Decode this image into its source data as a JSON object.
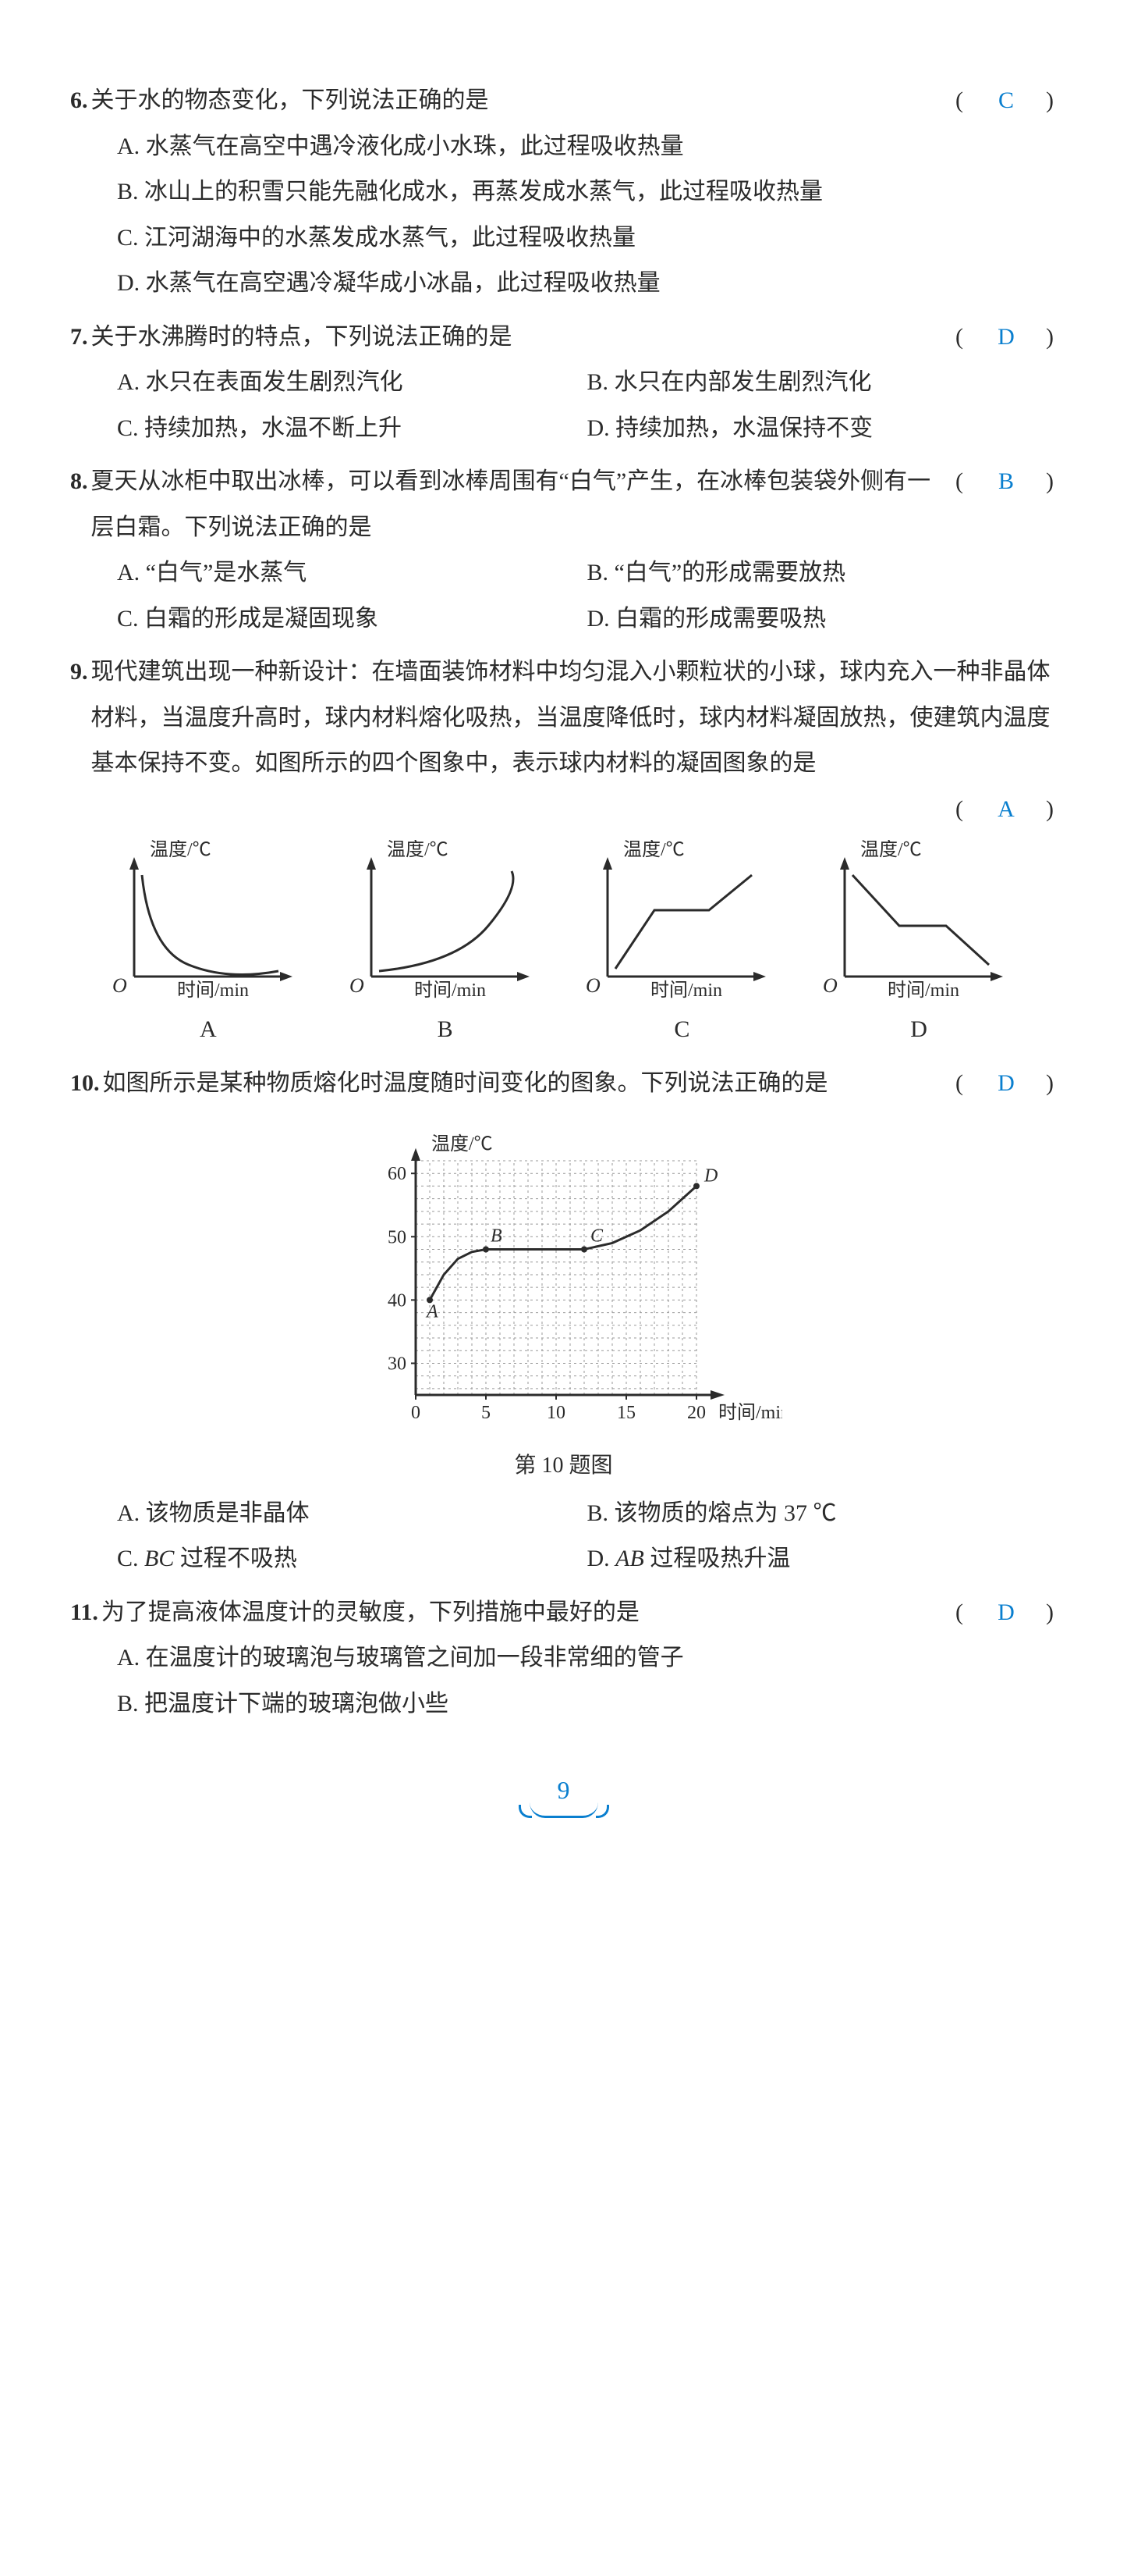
{
  "page_number": "9",
  "answer_color": "#0a7fcf",
  "text_color": "#2b2b2b",
  "q6": {
    "num": "6.",
    "stem": "关于水的物态变化，下列说法正确的是",
    "answer": "C",
    "A": "A. 水蒸气在高空中遇冷液化成小水珠，此过程吸收热量",
    "B": "B. 冰山上的积雪只能先融化成水，再蒸发成水蒸气，此过程吸收热量",
    "C": "C. 江河湖海中的水蒸发成水蒸气，此过程吸收热量",
    "D": "D. 水蒸气在高空遇冷凝华成小冰晶，此过程吸收热量"
  },
  "q7": {
    "num": "7.",
    "stem": "关于水沸腾时的特点，下列说法正确的是",
    "answer": "D",
    "A": "A. 水只在表面发生剧烈汽化",
    "B": "B. 水只在内部发生剧烈汽化",
    "C": "C. 持续加热，水温不断上升",
    "D": "D. 持续加热，水温保持不变"
  },
  "q8": {
    "num": "8.",
    "stem": "夏天从冰柜中取出冰棒，可以看到冰棒周围有“白气”产生，在冰棒包装袋外侧有一层白霜。下列说法正确的是",
    "answer": "B",
    "A": "A. “白气”是水蒸气",
    "B": "B. “白气”的形成需要放热",
    "C": "C. 白霜的形成是凝固现象",
    "D": "D. 白霜的形成需要吸热"
  },
  "q9": {
    "num": "9.",
    "stem": "现代建筑出现一种新设计：在墙面装饰材料中均匀混入小颗粒状的小球，球内充入一种非晶体材料，当温度升高时，球内材料熔化吸热，当温度降低时，球内材料凝固放热，使建筑内温度基本保持不变。如图所示的四个图象中，表示球内材料的凝固图象的是",
    "answer": "A",
    "y_label": "温度/℃",
    "x_label": "时间/min",
    "graphs": {
      "A": {
        "label": "A",
        "type": "decay_curve"
      },
      "B": {
        "label": "B",
        "type": "growth_curve"
      },
      "C": {
        "label": "C",
        "type": "step_up"
      },
      "D": {
        "label": "D",
        "type": "step_down"
      }
    },
    "axis_stroke": "#2b2b2b",
    "curve_stroke": "#2b2b2b",
    "origin_label": "O"
  },
  "q10": {
    "num": "10.",
    "stem": "如图所示是某种物质熔化时温度随时间变化的图象。下列说法正确的是",
    "answer": "D",
    "figure": {
      "y_label": "温度/℃",
      "x_label": "时间/min",
      "caption": "第 10 题图",
      "y_ticks": [
        "30",
        "40",
        "50",
        "60"
      ],
      "y_tick_vals": [
        30,
        40,
        50,
        60
      ],
      "x_ticks": [
        "0",
        "5",
        "10",
        "15",
        "20"
      ],
      "x_tick_vals": [
        0,
        5,
        10,
        15,
        20
      ],
      "grid_color": "#9a9a9a",
      "axis_color": "#2b2b2b",
      "curve_color": "#2b2b2b",
      "points": {
        "A": {
          "x": 1,
          "y": 40,
          "label": "A"
        },
        "B": {
          "x": 5,
          "y": 48,
          "label": "B"
        },
        "C": {
          "x": 12,
          "y": 48,
          "label": "C"
        },
        "D": {
          "x": 20,
          "y": 58,
          "label": "D"
        }
      },
      "curve": [
        [
          1,
          40
        ],
        [
          2,
          44
        ],
        [
          3,
          46.5
        ],
        [
          4,
          47.6
        ],
        [
          5,
          48
        ],
        [
          12,
          48
        ],
        [
          14,
          49
        ],
        [
          16,
          51
        ],
        [
          18,
          54
        ],
        [
          20,
          58
        ]
      ]
    },
    "A": "A. 该物质是非晶体",
    "B": "B. 该物质的熔点为 37 ℃",
    "C_pre": "C. ",
    "C_ital": "BC",
    "C_post": " 过程不吸热",
    "D_pre": "D. ",
    "D_ital": "AB",
    "D_post": " 过程吸热升温"
  },
  "q11": {
    "num": "11.",
    "stem": "为了提高液体温度计的灵敏度，下列措施中最好的是",
    "answer": "D",
    "A": "A. 在温度计的玻璃泡与玻璃管之间加一段非常细的管子",
    "B": "B. 把温度计下端的玻璃泡做小些"
  }
}
